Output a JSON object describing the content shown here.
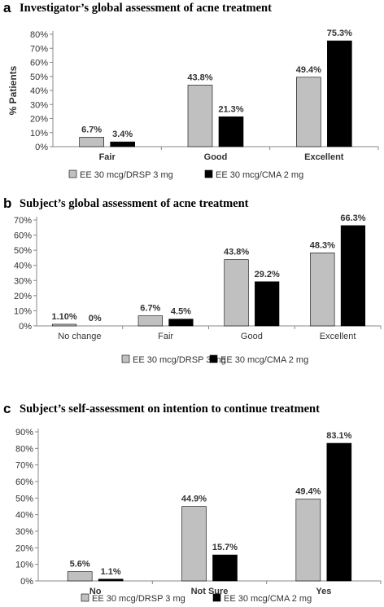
{
  "panels": [
    {
      "letter": "a",
      "title": "Investigator’s global assessment of acne treatment"
    },
    {
      "letter": "b",
      "title": "Subject’s global assessment of acne treatment"
    },
    {
      "letter": "c",
      "title": "Subject’s self-assessment on intention to continue treatment"
    }
  ],
  "colors": {
    "series1": "#c0c0c0",
    "series2": "#000000"
  },
  "chart_data": [
    {
      "type": "bar",
      "title": "Investigator’s global assessment of acne treatment",
      "ylabel": "% Patients",
      "xlabel": "",
      "ylim": [
        0,
        80
      ],
      "yticks": [
        "0%",
        "10%",
        "20%",
        "30%",
        "40%",
        "50%",
        "60%",
        "70%",
        "80%"
      ],
      "categories": [
        "Fair",
        "Good",
        "Excellent"
      ],
      "bold_categories": true,
      "series": [
        {
          "name": "EE 30 mcg/DRSP 3 mg",
          "values": [
            6.7,
            43.8,
            49.4
          ],
          "labels": [
            "6.7%",
            "43.8%",
            "49.4%"
          ]
        },
        {
          "name": "EE 30 mcg/CMA 2 mg",
          "values": [
            3.4,
            21.3,
            75.3
          ],
          "labels": [
            "3.4%",
            "21.3%",
            "75.3%"
          ]
        }
      ],
      "legend": "bottom",
      "grid": false
    },
    {
      "type": "bar",
      "title": "Subject’s global assessment of acne treatment",
      "ylabel": "",
      "xlabel": "",
      "ylim": [
        0,
        70
      ],
      "yticks": [
        "0%",
        "10%",
        "20%",
        "30%",
        "40%",
        "50%",
        "60%",
        "70%"
      ],
      "categories": [
        "No change",
        "Fair",
        "Good",
        "Excellent"
      ],
      "bold_categories": false,
      "series": [
        {
          "name": "EE 30 mcg/DRSP 3 mg",
          "values": [
            1.1,
            6.7,
            43.8,
            48.3
          ],
          "labels": [
            "1.10%",
            "6.7%",
            "43.8%",
            "48.3%"
          ]
        },
        {
          "name": "EE 30 mcg/CMA 2 mg",
          "values": [
            0,
            4.5,
            29.2,
            66.3
          ],
          "labels": [
            "0%",
            "4.5%",
            "29.2%",
            "66.3%"
          ]
        }
      ],
      "legend": "bottom",
      "grid": false
    },
    {
      "type": "bar",
      "title": "Subject’s self-assessment on intention to continue treatment",
      "ylabel": "",
      "xlabel": "",
      "ylim": [
        0,
        90
      ],
      "yticks": [
        "0%",
        "10%",
        "20%",
        "30%",
        "40%",
        "50%",
        "60%",
        "70%",
        "80%",
        "90%"
      ],
      "categories": [
        "No",
        "Not Sure",
        "Yes"
      ],
      "bold_categories": true,
      "series": [
        {
          "name": "EE 30 mcg/DRSP 3 mg",
          "values": [
            5.6,
            44.9,
            49.4
          ],
          "labels": [
            "5.6%",
            "44.9%",
            "49.4%"
          ]
        },
        {
          "name": "EE 30 mcg/CMA 2 mg",
          "values": [
            1.1,
            15.7,
            83.1
          ],
          "labels": [
            "1.1%",
            "15.7%",
            "83.1%"
          ]
        }
      ],
      "legend": "bottom",
      "grid": false
    }
  ]
}
